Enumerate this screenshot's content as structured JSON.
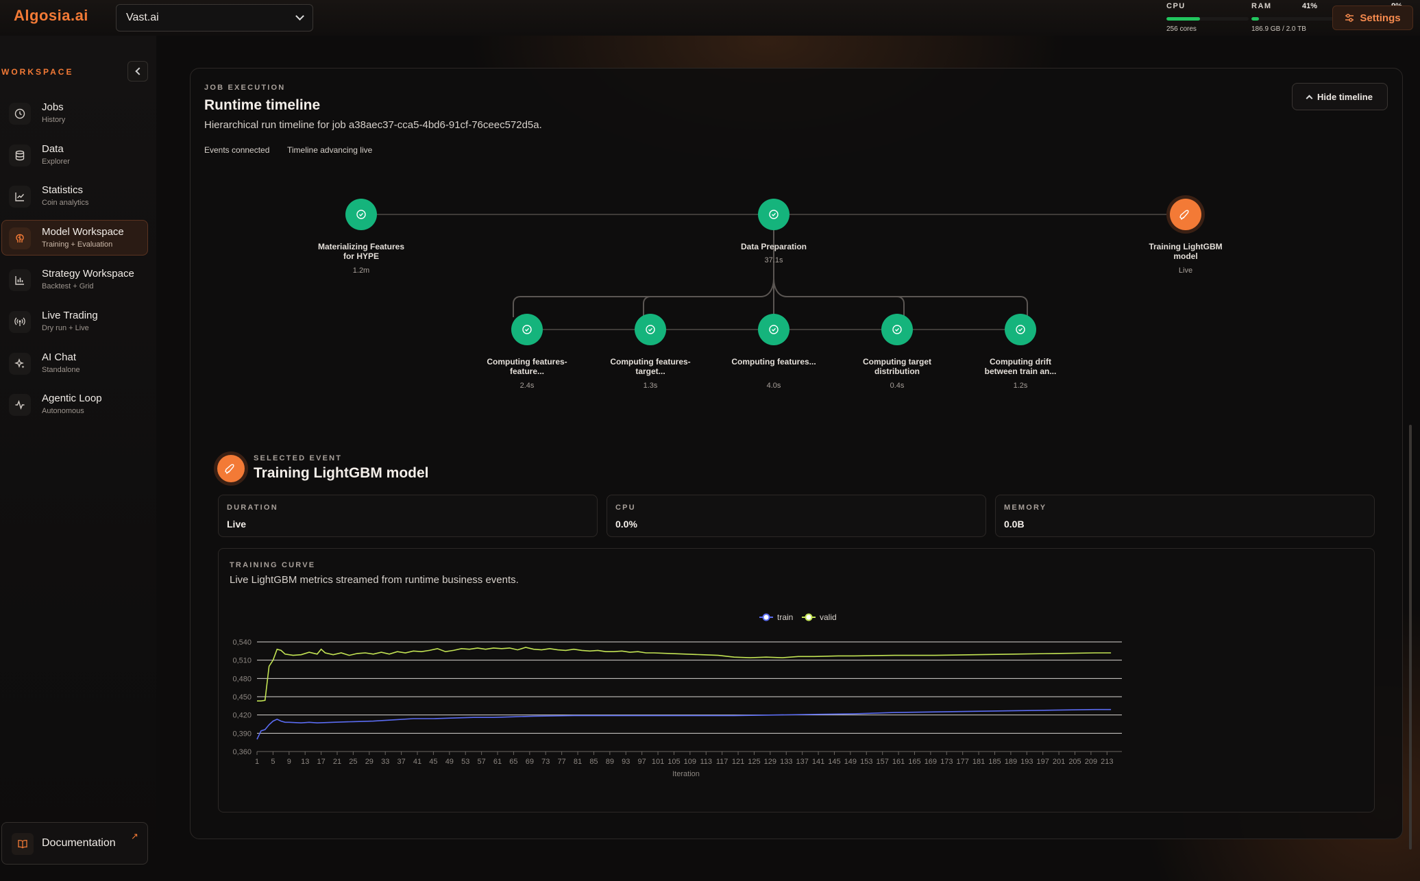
{
  "header": {
    "logo": "Algosia.ai",
    "provider": "Vast.ai",
    "cpu": {
      "label": "CPU",
      "percent": "41%",
      "value": 0.41,
      "detail": "256 cores",
      "color": "#22c55e"
    },
    "ram": {
      "label": "RAM",
      "percent": "9%",
      "value": 0.09,
      "detail": "186.9 GB / 2.0 TB",
      "color": "#22c55e"
    },
    "settings": "Settings"
  },
  "sidebar": {
    "workspace_label": "WORKSPACE",
    "items": [
      {
        "title": "Jobs",
        "subtitle": "History",
        "icon": "clock-icon"
      },
      {
        "title": "Data",
        "subtitle": "Explorer",
        "icon": "database-icon"
      },
      {
        "title": "Statistics",
        "subtitle": "Coin analytics",
        "icon": "chart-icon"
      },
      {
        "title": "Model Workspace",
        "subtitle": "Training + Evaluation",
        "icon": "brain-icon",
        "active": true
      },
      {
        "title": "Strategy Workspace",
        "subtitle": "Backtest + Grid",
        "icon": "bar-chart-icon"
      },
      {
        "title": "Live Trading",
        "subtitle": "Dry run + Live",
        "icon": "broadcast-icon"
      },
      {
        "title": "AI Chat",
        "subtitle": "Standalone",
        "icon": "sparkle-icon"
      },
      {
        "title": "Agentic Loop",
        "subtitle": "Autonomous",
        "icon": "activity-icon"
      }
    ],
    "documentation": "Documentation"
  },
  "job": {
    "kicker": "JOB EXECUTION",
    "title": "Runtime timeline",
    "description": "Hierarchical run timeline for job a38aec37-cca5-4bd6-91cf-76ceec572d5a.",
    "status_events": "Events connected",
    "status_timeline": "Timeline advancing live",
    "hide_button": "Hide timeline"
  },
  "timeline": {
    "top": [
      {
        "label": "Materializing Features for HYPE",
        "duration": "1.2m",
        "state": "done"
      },
      {
        "label": "Data Preparation",
        "duration": "37.1s",
        "state": "done"
      },
      {
        "label": "Training LightGBM model",
        "duration": "Live",
        "state": "live"
      }
    ],
    "children": [
      {
        "label": "Computing features-feature...",
        "duration": "2.4s"
      },
      {
        "label": "Computing features-target...",
        "duration": "1.3s"
      },
      {
        "label": "Computing features...",
        "duration": "4.0s"
      },
      {
        "label": "Computing target distribution",
        "duration": "0.4s"
      },
      {
        "label": "Computing drift between train an...",
        "duration": "1.2s"
      }
    ]
  },
  "selected": {
    "kicker": "SELECTED EVENT",
    "title": "Training LightGBM model",
    "metrics": [
      {
        "label": "DURATION",
        "value": "Live"
      },
      {
        "label": "CPU",
        "value": "0.0%"
      },
      {
        "label": "MEMORY",
        "value": "0.0B"
      }
    ]
  },
  "training": {
    "kicker": "TRAINING CURVE",
    "description": "Live LightGBM metrics streamed from runtime business events."
  },
  "chart_data": {
    "type": "line",
    "xlabel": "Iteration",
    "ylabel": "",
    "xlim": [
      1,
      215
    ],
    "ylim": [
      0.36,
      0.54
    ],
    "yticks": [
      "0,360",
      "0,390",
      "0,420",
      "0,450",
      "0,480",
      "0,510",
      "0,540"
    ],
    "xticks": [
      1,
      5,
      9,
      13,
      17,
      21,
      25,
      29,
      33,
      37,
      41,
      45,
      49,
      53,
      57,
      61,
      65,
      69,
      73,
      77,
      81,
      85,
      89,
      93,
      97,
      101,
      105,
      109,
      113,
      117,
      121,
      125,
      129,
      133,
      137,
      141,
      145,
      149,
      153,
      157,
      161,
      165,
      169,
      173,
      177,
      181,
      185,
      189,
      193,
      197,
      201,
      205,
      209,
      213
    ],
    "grid": true,
    "legend": "top-center",
    "series": [
      {
        "name": "train",
        "color": "#5b6cf2",
        "points": [
          [
            1,
            0.38
          ],
          [
            2,
            0.394
          ],
          [
            3,
            0.396
          ],
          [
            4,
            0.404
          ],
          [
            5,
            0.41
          ],
          [
            6,
            0.413
          ],
          [
            7,
            0.41
          ],
          [
            8,
            0.408
          ],
          [
            9,
            0.408
          ],
          [
            12,
            0.407
          ],
          [
            14,
            0.408
          ],
          [
            16,
            0.407
          ],
          [
            20,
            0.408
          ],
          [
            25,
            0.409
          ],
          [
            30,
            0.41
          ],
          [
            35,
            0.412
          ],
          [
            40,
            0.414
          ],
          [
            45,
            0.414
          ],
          [
            50,
            0.415
          ],
          [
            55,
            0.416
          ],
          [
            60,
            0.416
          ],
          [
            65,
            0.417
          ],
          [
            70,
            0.418
          ],
          [
            80,
            0.419
          ],
          [
            90,
            0.419
          ],
          [
            100,
            0.419
          ],
          [
            110,
            0.419
          ],
          [
            120,
            0.419
          ],
          [
            130,
            0.42
          ],
          [
            140,
            0.421
          ],
          [
            150,
            0.422
          ],
          [
            160,
            0.424
          ],
          [
            170,
            0.425
          ],
          [
            180,
            0.426
          ],
          [
            190,
            0.427
          ],
          [
            200,
            0.428
          ],
          [
            210,
            0.429
          ],
          [
            214,
            0.429
          ]
        ]
      },
      {
        "name": "valid",
        "color": "#c3e454",
        "points": [
          [
            1,
            0.443
          ],
          [
            2,
            0.443
          ],
          [
            3,
            0.444
          ],
          [
            4,
            0.5
          ],
          [
            5,
            0.51
          ],
          [
            6,
            0.528
          ],
          [
            7,
            0.526
          ],
          [
            8,
            0.52
          ],
          [
            10,
            0.518
          ],
          [
            12,
            0.519
          ],
          [
            14,
            0.523
          ],
          [
            16,
            0.52
          ],
          [
            17,
            0.528
          ],
          [
            18,
            0.522
          ],
          [
            20,
            0.519
          ],
          [
            22,
            0.522
          ],
          [
            24,
            0.518
          ],
          [
            26,
            0.521
          ],
          [
            28,
            0.522
          ],
          [
            30,
            0.52
          ],
          [
            32,
            0.523
          ],
          [
            34,
            0.52
          ],
          [
            36,
            0.524
          ],
          [
            38,
            0.522
          ],
          [
            40,
            0.525
          ],
          [
            42,
            0.524
          ],
          [
            44,
            0.526
          ],
          [
            46,
            0.529
          ],
          [
            48,
            0.524
          ],
          [
            50,
            0.526
          ],
          [
            52,
            0.529
          ],
          [
            54,
            0.528
          ],
          [
            56,
            0.53
          ],
          [
            58,
            0.528
          ],
          [
            60,
            0.53
          ],
          [
            62,
            0.529
          ],
          [
            64,
            0.53
          ],
          [
            66,
            0.527
          ],
          [
            68,
            0.531
          ],
          [
            70,
            0.528
          ],
          [
            72,
            0.527
          ],
          [
            74,
            0.529
          ],
          [
            76,
            0.527
          ],
          [
            78,
            0.526
          ],
          [
            80,
            0.528
          ],
          [
            82,
            0.526
          ],
          [
            84,
            0.525
          ],
          [
            86,
            0.526
          ],
          [
            88,
            0.524
          ],
          [
            90,
            0.524
          ],
          [
            92,
            0.525
          ],
          [
            94,
            0.523
          ],
          [
            96,
            0.524
          ],
          [
            98,
            0.522
          ],
          [
            100,
            0.522
          ],
          [
            104,
            0.521
          ],
          [
            108,
            0.52
          ],
          [
            112,
            0.519
          ],
          [
            116,
            0.518
          ],
          [
            120,
            0.515
          ],
          [
            124,
            0.514
          ],
          [
            128,
            0.515
          ],
          [
            132,
            0.514
          ],
          [
            136,
            0.516
          ],
          [
            140,
            0.516
          ],
          [
            146,
            0.517
          ],
          [
            150,
            0.517
          ],
          [
            160,
            0.518
          ],
          [
            170,
            0.518
          ],
          [
            180,
            0.519
          ],
          [
            190,
            0.52
          ],
          [
            200,
            0.521
          ],
          [
            210,
            0.522
          ],
          [
            214,
            0.522
          ]
        ]
      }
    ]
  },
  "colors": {
    "accent": "#f37a36",
    "success": "#16b07a",
    "background": "#0d0c0c"
  }
}
